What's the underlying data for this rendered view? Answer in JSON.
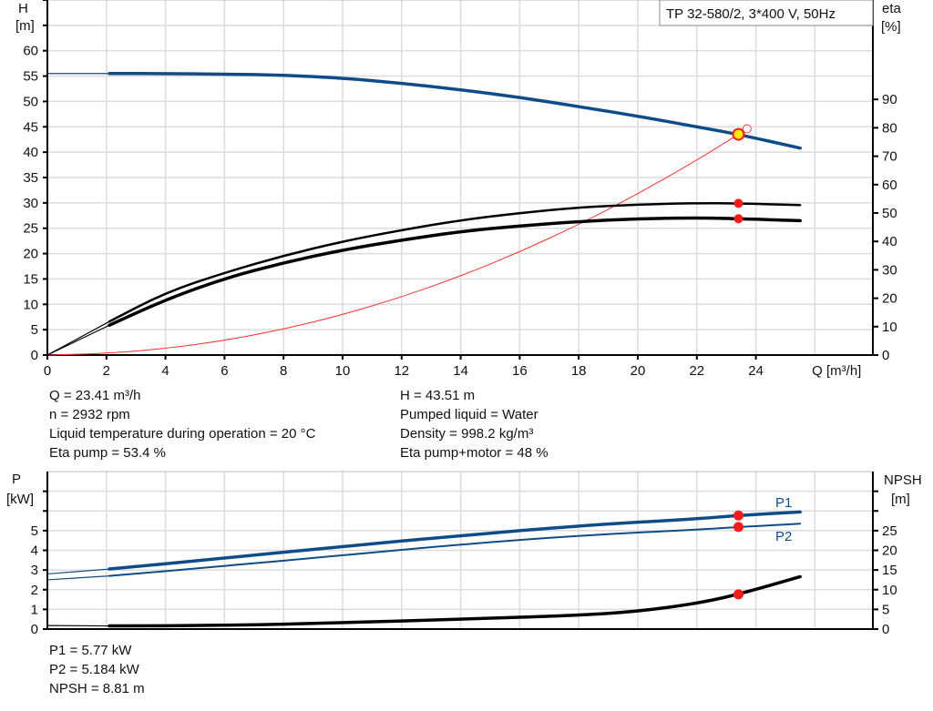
{
  "title_box": "TP 32-580/2, 3*400 V, 50Hz",
  "colors": {
    "head": "#0f4c87",
    "eff": "#000000",
    "system": "#ff3030",
    "power": "#0f4c87",
    "npsh": "#000000",
    "marker": "#ff1a1a",
    "duty": "#ffee00"
  },
  "chart_data": [
    {
      "type": "line",
      "title": "TP 32-580/2, 3*400 V, 50Hz",
      "xlabel": "Q [m³/h]",
      "x_ticks": [
        0,
        2,
        4,
        6,
        8,
        10,
        12,
        14,
        16,
        18,
        20,
        22,
        24
      ],
      "xlim": [
        0,
        28
      ],
      "ylabel_left": "H\n[m]",
      "ylabel_left_lines": [
        "H",
        "[m]"
      ],
      "y_ticks_left": [
        0,
        5,
        10,
        15,
        20,
        25,
        30,
        35,
        40,
        45,
        50,
        55,
        60
      ],
      "ylim_left": [
        0,
        70
      ],
      "ylabel_right_lines": [
        "eta",
        "[%]"
      ],
      "y_ticks_right": [
        0,
        10,
        20,
        30,
        40,
        50,
        60,
        70,
        80,
        90
      ],
      "ylim_right": [
        0,
        125
      ],
      "grid": true,
      "series": [
        {
          "role": "head",
          "axis": "left",
          "x": [
            0,
            2.1,
            4,
            6,
            8,
            10,
            12,
            14,
            16,
            18,
            20,
            22,
            23.41,
            25.5
          ],
          "y": [
            55.5,
            55.5,
            55.5,
            55.4,
            55.2,
            54.6,
            53.6,
            52.3,
            50.8,
            49.0,
            47.1,
            45.0,
            43.51,
            40.8
          ]
        },
        {
          "role": "system",
          "axis": "left",
          "x": [
            0,
            2,
            4,
            6,
            8,
            10,
            12,
            14,
            16,
            18,
            20,
            22,
            23.41,
            23.7
          ],
          "y": [
            0,
            0.32,
            1.27,
            2.86,
            5.08,
            7.94,
            11.43,
            15.56,
            20.32,
            25.72,
            31.75,
            38.42,
            43.51,
            44.6
          ]
        },
        {
          "role": "eta-pump",
          "axis": "right",
          "x": [
            0,
            2.1,
            4,
            6,
            8,
            10,
            12,
            14,
            16,
            18,
            20,
            22,
            23.41,
            25.5
          ],
          "y": [
            0,
            11.8,
            22,
            29,
            35,
            40,
            44,
            47.5,
            50,
            52,
            53,
            53.5,
            53.4,
            52.8
          ]
        },
        {
          "role": "eta-pump-motor",
          "axis": "right",
          "x": [
            0,
            2.1,
            4,
            6,
            8,
            10,
            12,
            14,
            16,
            18,
            20,
            22,
            23.41,
            25.5
          ],
          "y": [
            0,
            10.5,
            19.5,
            27,
            32.5,
            37,
            40.5,
            43.5,
            45.5,
            47,
            48,
            48.3,
            48,
            47.3
          ]
        }
      ],
      "duty_point": {
        "Q": 23.41,
        "H": 43.51,
        "eta_pump": 53.4,
        "eta_pump_motor": 48
      }
    },
    {
      "type": "line",
      "xlim": [
        0,
        28
      ],
      "ylabel_left_lines": [
        "P",
        "[kW]"
      ],
      "y_ticks_left": [
        0,
        1,
        2,
        3,
        4,
        5
      ],
      "ylim_left": [
        0,
        8
      ],
      "ylabel_right_lines": [
        "NPSH",
        "[m]"
      ],
      "y_ticks_right": [
        0,
        5,
        10,
        15,
        20,
        25
      ],
      "ylim_right": [
        0,
        40
      ],
      "grid": true,
      "series": [
        {
          "name": "P1",
          "axis": "left",
          "x": [
            0,
            2.1,
            6,
            10,
            14,
            18,
            22,
            23.41,
            25.5
          ],
          "y": [
            2.8,
            3.05,
            3.6,
            4.2,
            4.75,
            5.25,
            5.6,
            5.77,
            5.95
          ]
        },
        {
          "name": "P2",
          "axis": "left",
          "x": [
            0,
            2.1,
            6,
            10,
            14,
            18,
            22,
            23.41,
            25.5
          ],
          "y": [
            2.5,
            2.7,
            3.2,
            3.75,
            4.3,
            4.75,
            5.05,
            5.184,
            5.35
          ]
        },
        {
          "role": "npsh",
          "axis": "right",
          "x": [
            0,
            2.1,
            6,
            10,
            14,
            18,
            20,
            22,
            23.41,
            25.5
          ],
          "y": [
            0.9,
            0.8,
            0.9,
            1.6,
            2.5,
            3.5,
            4.5,
            6.5,
            8.81,
            13.3
          ]
        }
      ],
      "duty_point": {
        "P1": 5.77,
        "P2": 5.184,
        "NPSH": 8.81
      }
    }
  ],
  "info_top_left": [
    "Q = 23.41 m³/h",
    "n = 2932 rpm",
    "Liquid temperature during operation = 20 °C",
    "Eta pump = 53.4 %"
  ],
  "info_top_right": [
    "H = 43.51 m",
    "Pumped liquid = Water",
    "Density = 998.2 kg/m³",
    "Eta pump+motor = 48 %"
  ],
  "info_bottom": [
    "P1 = 5.77 kW",
    "P2 = 5.184 kW",
    "NPSH = 8.81 m"
  ]
}
